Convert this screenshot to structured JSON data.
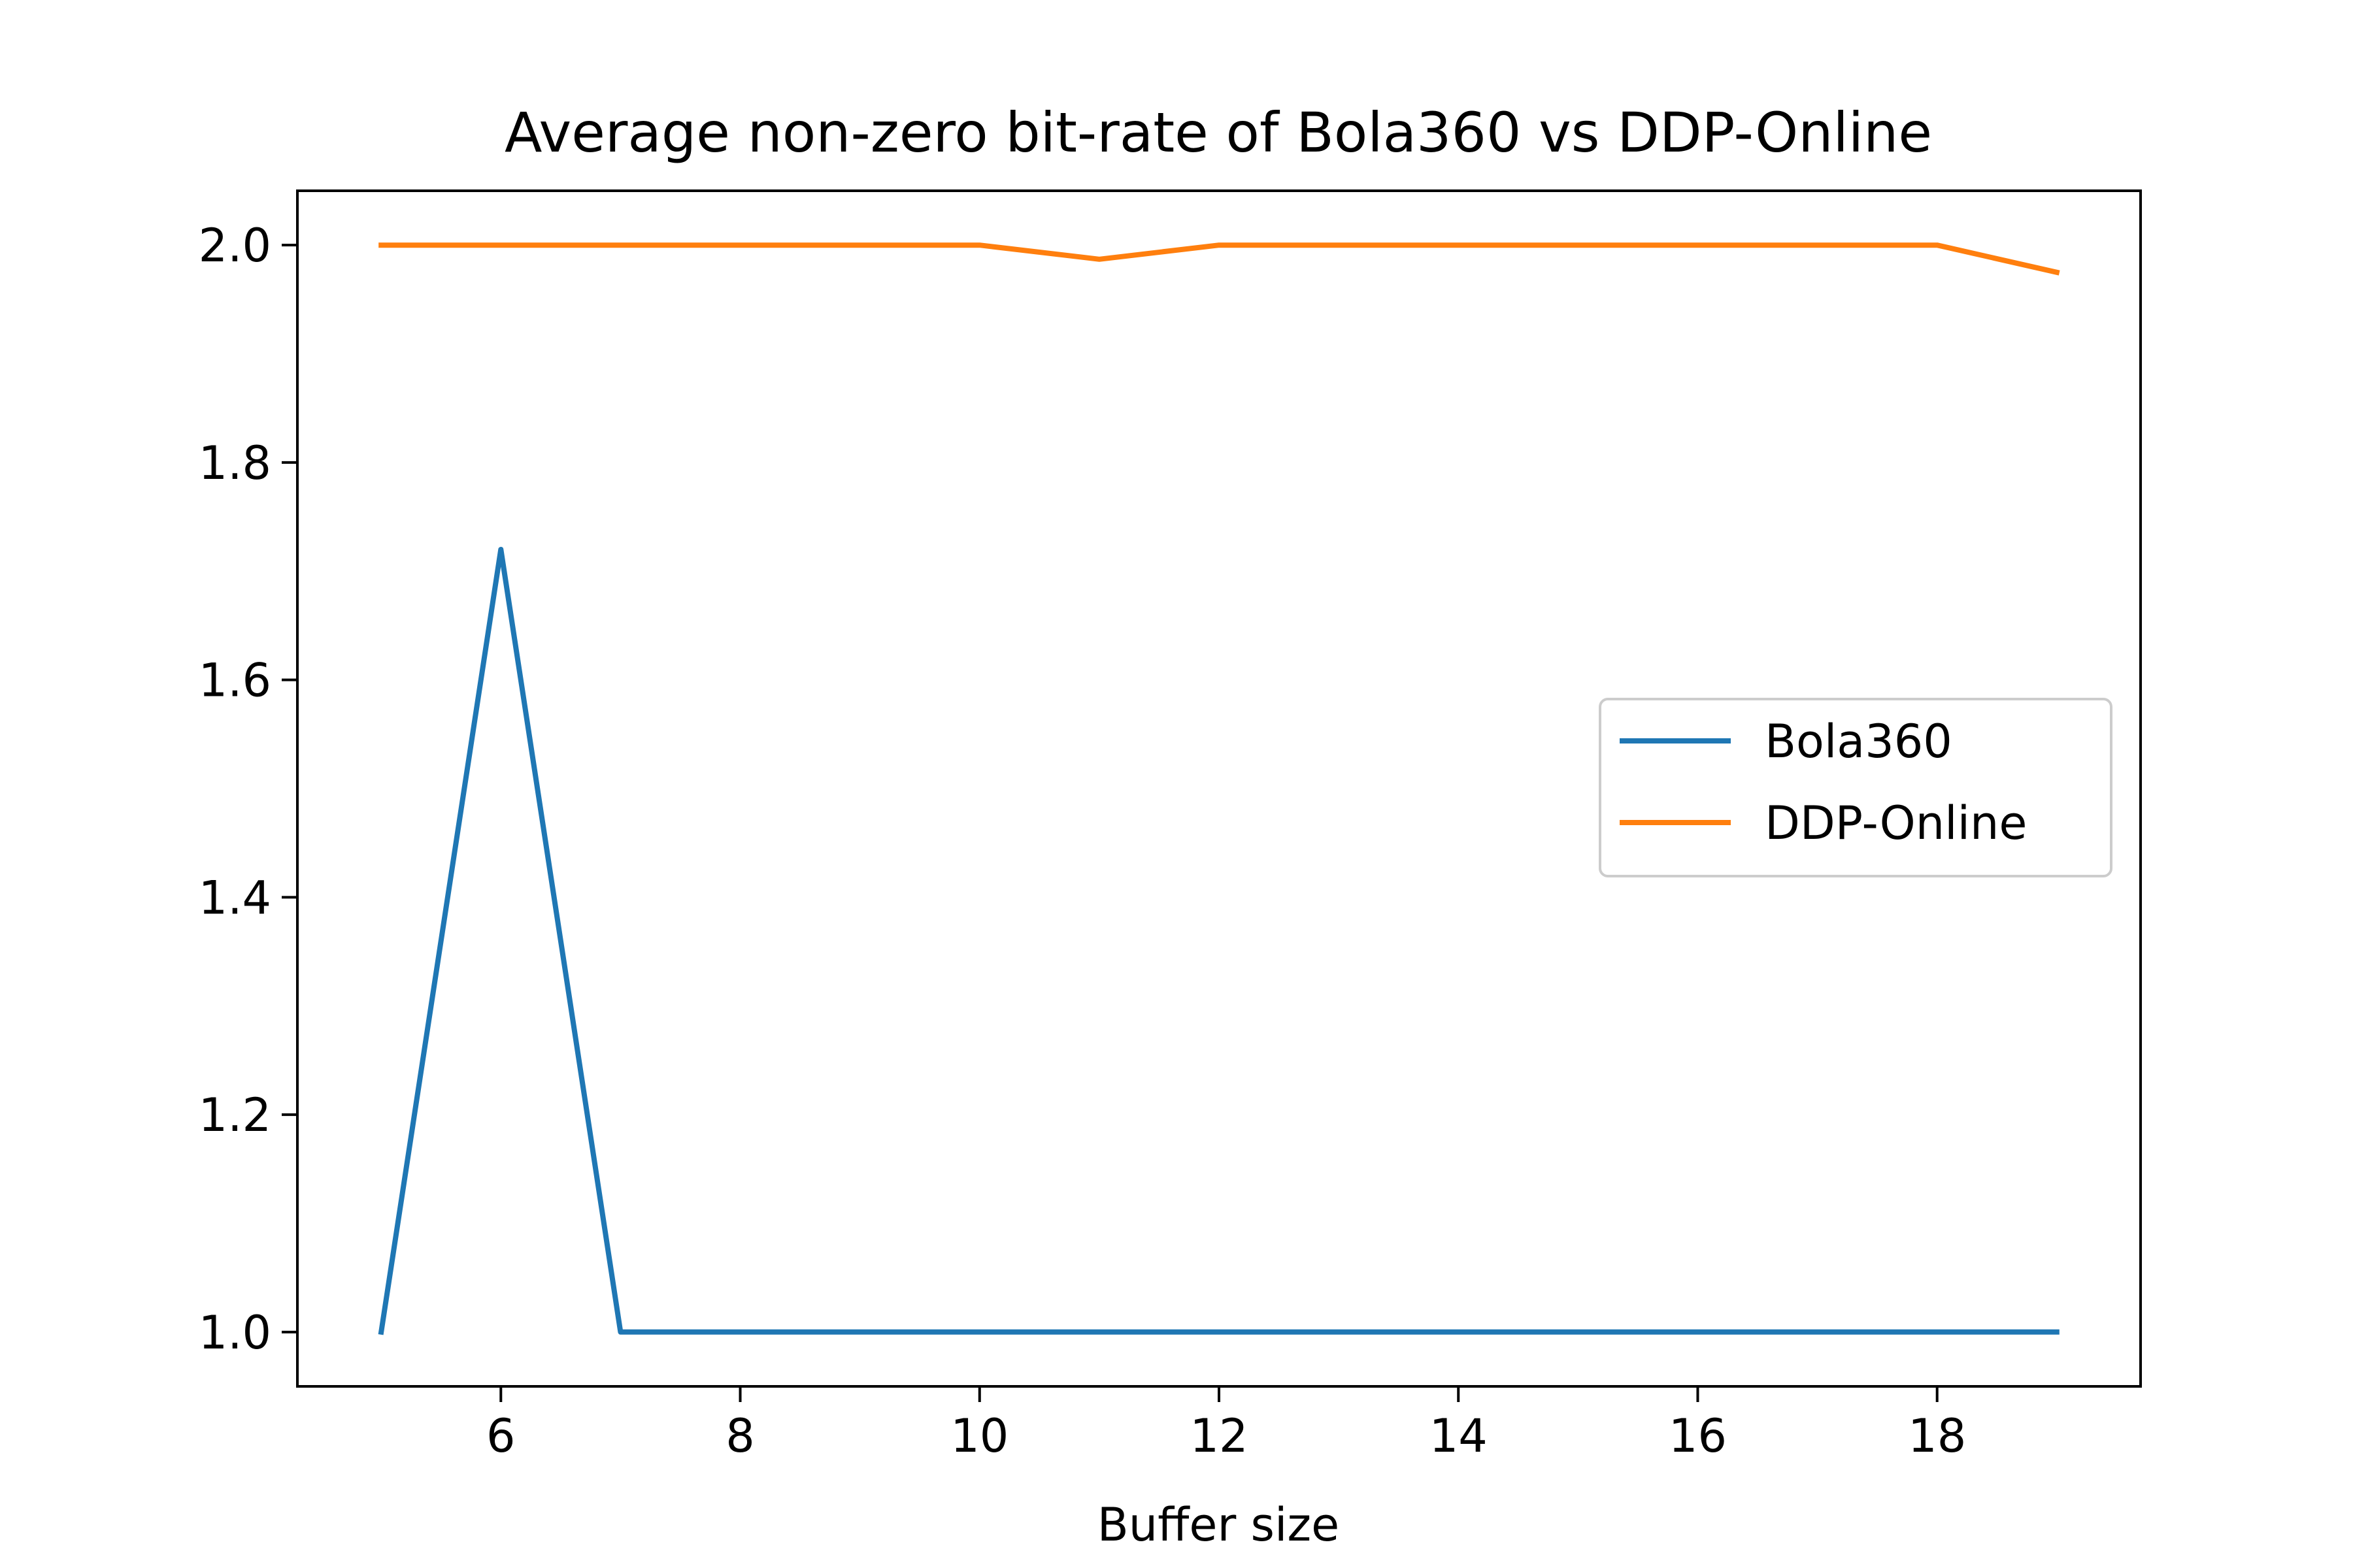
{
  "chart_data": {
    "type": "line",
    "title": "Average non-zero bit-rate of Bola360 vs DDP-Online",
    "xlabel": "Buffer size",
    "ylabel": "",
    "x": [
      5,
      6,
      7,
      8,
      9,
      10,
      11,
      12,
      13,
      14,
      15,
      16,
      17,
      18,
      19
    ],
    "xlim": [
      4.3,
      19.7
    ],
    "ylim": [
      0.95,
      2.05
    ],
    "xticks": [
      6,
      8,
      10,
      12,
      14,
      16,
      18
    ],
    "yticks": [
      1.0,
      1.2,
      1.4,
      1.6,
      1.8,
      2.0
    ],
    "xtick_labels": [
      "6",
      "8",
      "10",
      "12",
      "14",
      "16",
      "18"
    ],
    "ytick_labels": [
      "1.0",
      "1.2",
      "1.4",
      "1.6",
      "1.8",
      "2.0"
    ],
    "grid": false,
    "legend_position": "center-right",
    "series": [
      {
        "name": "Bola360",
        "color": "#1f77b4",
        "values": [
          1.0,
          1.72,
          1.0,
          1.0,
          1.0,
          1.0,
          1.0,
          1.0,
          1.0,
          1.0,
          1.0,
          1.0,
          1.0,
          1.0,
          1.0
        ]
      },
      {
        "name": "DDP-Online",
        "color": "#ff7f0e",
        "values": [
          2.0,
          2.0,
          2.0,
          2.0,
          2.0,
          2.0,
          1.987,
          2.0,
          2.0,
          2.0,
          2.0,
          2.0,
          2.0,
          2.0,
          1.975
        ]
      }
    ]
  }
}
